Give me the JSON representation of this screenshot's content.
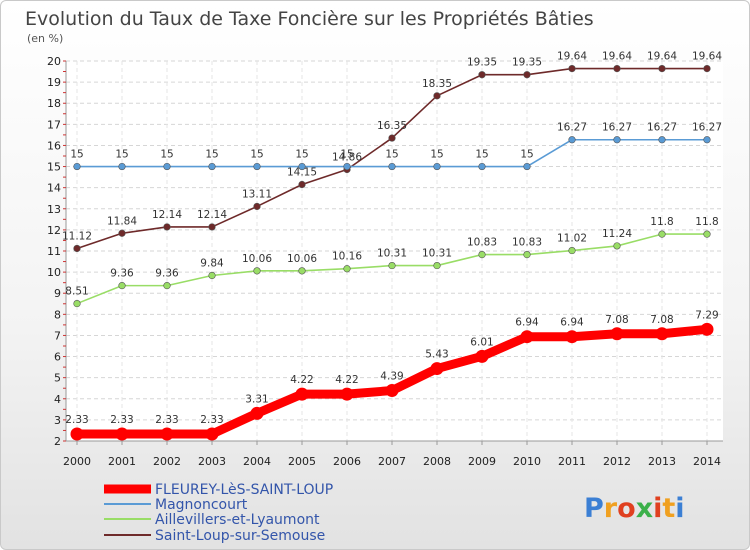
{
  "chart_data": {
    "type": "line",
    "title": "Evolution du Taux de Taxe Foncière sur les Propriétés Bâties",
    "subtitle": "(en %)",
    "x": [
      "2000",
      "2001",
      "2002",
      "2003",
      "2004",
      "2005",
      "2006",
      "2007",
      "2008",
      "2009",
      "2010",
      "2011",
      "2012",
      "2013",
      "2014"
    ],
    "ylim": [
      2,
      20
    ],
    "yticks": [
      2,
      3,
      4,
      5,
      6,
      7,
      8,
      9,
      10,
      11,
      12,
      13,
      14,
      15,
      16,
      17,
      18,
      19,
      20
    ],
    "grid": true,
    "legend_position": "bottom-left",
    "series": [
      {
        "name": "FLEUREY-LèS-SAINT-LOUP",
        "color": "#ff0000",
        "values": [
          2.33,
          2.33,
          2.33,
          2.33,
          3.31,
          4.22,
          4.22,
          4.39,
          5.43,
          6.01,
          6.94,
          6.94,
          7.08,
          7.08,
          7.29
        ],
        "labels": [
          "2.33",
          "2.33",
          "2.33",
          "2.33",
          "3.31",
          "4.22",
          "4.22",
          "4.39",
          "5.43",
          "6.01",
          "6.94",
          "6.94",
          "7.08",
          "7.08",
          "7.29"
        ]
      },
      {
        "name": "Magnoncourt",
        "color": "#5a9bd5",
        "values": [
          15,
          15,
          15,
          15,
          15,
          15,
          15,
          15,
          15,
          15,
          15,
          16.27,
          16.27,
          16.27,
          16.27
        ],
        "labels": [
          "15",
          "15",
          "15",
          "15",
          "15",
          "15",
          "15",
          "15",
          "15",
          "15",
          "15",
          "16.27",
          "16.27",
          "16.27",
          "16.27"
        ]
      },
      {
        "name": "Aillevillers-et-Lyaumont",
        "color": "#99dd66",
        "values": [
          8.51,
          9.36,
          9.36,
          9.84,
          10.06,
          10.06,
          10.16,
          10.31,
          10.31,
          10.83,
          10.83,
          11.02,
          11.24,
          11.8,
          11.8
        ],
        "labels": [
          "8.51",
          "9.36",
          "9.36",
          "9.84",
          "10.06",
          "10.06",
          "10.16",
          "10.31",
          "10.31",
          "10.83",
          "10.83",
          "11.02",
          "11.24",
          "11.8",
          "11.8"
        ]
      },
      {
        "name": "Saint-Loup-sur-Semouse",
        "color": "#6e2a2a",
        "values": [
          11.12,
          11.84,
          12.14,
          12.14,
          13.11,
          14.15,
          14.86,
          16.35,
          18.35,
          19.35,
          19.35,
          19.64,
          19.64,
          19.64,
          19.64
        ],
        "labels": [
          "11.12",
          "11.84",
          "12.14",
          "12.14",
          "13.11",
          "14.15",
          "14.86",
          "16.35",
          "18.35",
          "19.35",
          "19.35",
          "19.64",
          "19.64",
          "19.64",
          "19.64"
        ]
      }
    ]
  },
  "brand": {
    "letters": [
      "P",
      "r",
      "o",
      "x",
      "i",
      "t",
      "i"
    ],
    "colors": [
      "#3b7fd4",
      "#f0a020",
      "#e04020",
      "#3bb04a",
      "#e04020",
      "#f0a020",
      "#3b7fd4"
    ]
  }
}
